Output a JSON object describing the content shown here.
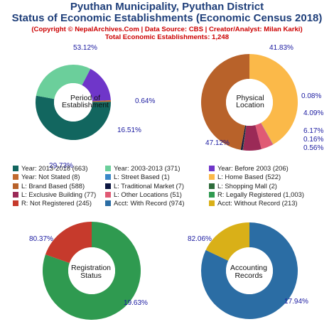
{
  "header": {
    "title_line1": "Pyuthan Municipality, Pyuthan District",
    "title_line2": "Status of Economic Establishments (Economic Census 2018)",
    "copyright": "(Copyright © NepalArchives.Com | Data Source: CBS | Creator/Analyst: Milan Karki)",
    "total": "Total Economic Establishments: 1,248"
  },
  "chart_data": [
    {
      "type": "pie",
      "title": "Period of Establishment",
      "center_label_lines": [
        "Period of",
        "Establishment"
      ],
      "slices": [
        {
          "name": "Year: 2013-2018",
          "value": 663,
          "percent": 53.12,
          "label": "53.12%",
          "color": "#12665f"
        },
        {
          "name": "Year: 2003-2013",
          "value": 371,
          "percent": 29.73,
          "label": "29.73%",
          "color": "#6bcf9b"
        },
        {
          "name": "Year: Before 2003",
          "value": 206,
          "percent": 16.51,
          "label": "16.51%",
          "color": "#6f36c9"
        },
        {
          "name": "Year: Not Stated",
          "value": 8,
          "percent": 0.64,
          "label": "0.64%",
          "color": "#c26a2e"
        }
      ]
    },
    {
      "type": "pie",
      "title": "Physical Location",
      "center_label_lines": [
        "Physical",
        "Location"
      ],
      "slices": [
        {
          "name": "L: Home Based",
          "value": 522,
          "percent": 41.83,
          "label": "41.83%",
          "color": "#fbb949"
        },
        {
          "name": "L: Street Based",
          "value": 1,
          "percent": 0.08,
          "label": "0.08%",
          "color": "#3a87c8"
        },
        {
          "name": "L: Other Locations",
          "value": 51,
          "percent": 4.09,
          "label": "4.09%",
          "color": "#e05a74"
        },
        {
          "name": "L: Exclusive Building",
          "value": 77,
          "percent": 6.17,
          "label": "6.17%",
          "color": "#9b2a57"
        },
        {
          "name": "L: Shopping Mall",
          "value": 2,
          "percent": 0.16,
          "label": "0.16%",
          "color": "#2e6b3a"
        },
        {
          "name": "L: Traditional Market",
          "value": 7,
          "percent": 0.56,
          "label": "0.56%",
          "color": "#0c1640"
        },
        {
          "name": "L: Brand Based",
          "value": 588,
          "percent": 47.12,
          "label": "47.12%",
          "color": "#b8622a"
        }
      ]
    },
    {
      "type": "pie",
      "title": "Registration Status",
      "center_label_lines": [
        "Registration",
        "Status"
      ],
      "slices": [
        {
          "name": "R: Legally Registered",
          "value": 1003,
          "percent": 80.37,
          "label": "80.37%",
          "color": "#2f9a50"
        },
        {
          "name": "R: Not Registered",
          "value": 245,
          "percent": 19.63,
          "label": "19.63%",
          "color": "#c63a2c"
        }
      ]
    },
    {
      "type": "pie",
      "title": "Accounting Records",
      "center_label_lines": [
        "Accounting",
        "Records"
      ],
      "slices": [
        {
          "name": "Acct: With Record",
          "value": 974,
          "percent": 82.06,
          "label": "82.06%",
          "color": "#2b6da4"
        },
        {
          "name": "Acct: Without Record",
          "value": 213,
          "percent": 17.94,
          "label": "17.94%",
          "color": "#d9b018"
        }
      ]
    }
  ],
  "legend": [
    {
      "label": "Year: 2013-2018 (663)",
      "color": "#12665f"
    },
    {
      "label": "Year: 2003-2013 (371)",
      "color": "#6bcf9b"
    },
    {
      "label": "Year: Before 2003 (206)",
      "color": "#6f36c9"
    },
    {
      "label": "Year: Not Stated (8)",
      "color": "#c26a2e"
    },
    {
      "label": "L: Street Based (1)",
      "color": "#3a87c8"
    },
    {
      "label": "L: Home Based (522)",
      "color": "#fbb949"
    },
    {
      "label": "L: Brand Based (588)",
      "color": "#b8622a"
    },
    {
      "label": "L: Traditional Market (7)",
      "color": "#0c1640"
    },
    {
      "label": "L: Shopping Mall (2)",
      "color": "#2e6b3a"
    },
    {
      "label": "L: Exclusive Building (77)",
      "color": "#9b2a57"
    },
    {
      "label": "L: Other Locations (51)",
      "color": "#e05a74"
    },
    {
      "label": "R: Legally Registered (1,003)",
      "color": "#2f9a50"
    },
    {
      "label": "R: Not Registered (245)",
      "color": "#c63a2c"
    },
    {
      "label": "Acct: With Record (974)",
      "color": "#2b6da4"
    },
    {
      "label": "Acct: Without Record (213)",
      "color": "#d9b018"
    }
  ]
}
